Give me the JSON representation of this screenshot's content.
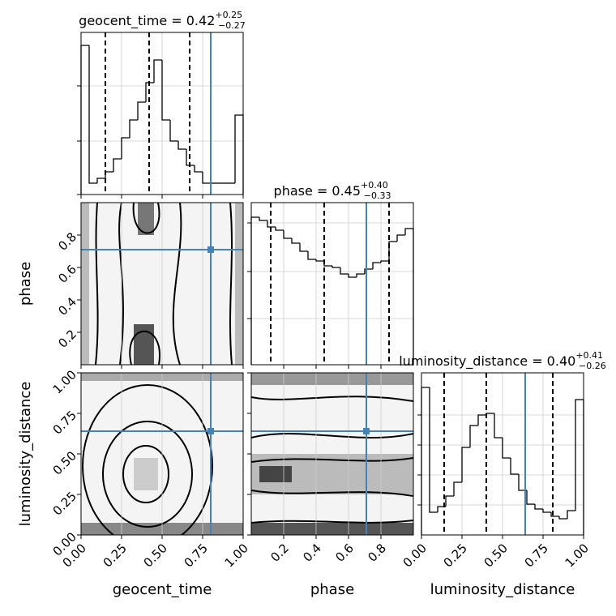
{
  "chart_data": {
    "type": "corner",
    "truth_color": "#4682b4",
    "grid": true,
    "parameters": [
      {
        "name": "geocent_time",
        "title": {
          "main": "geocent_time = 0.42",
          "sup": "+0.25",
          "sub": "−0.27"
        },
        "lim": [
          0,
          1
        ],
        "ticks": [
          {
            "value": 0,
            "label": "0.00"
          },
          {
            "value": 0.25,
            "label": "0.25"
          },
          {
            "value": 0.5,
            "label": "0.50"
          },
          {
            "value": 0.75,
            "label": "0.75"
          },
          {
            "value": 1,
            "label": "1.00"
          }
        ],
        "quantiles": [
          0.15,
          0.42,
          0.67
        ],
        "truth": 0.8,
        "hist": {
          "bins": [
            0,
            0.05,
            0.1,
            0.15,
            0.2,
            0.25,
            0.3,
            0.35,
            0.4,
            0.45,
            0.5,
            0.55,
            0.6,
            0.65,
            0.7,
            0.75,
            0.8,
            0.85,
            0.9,
            0.95,
            1
          ],
          "values": [
            0.92,
            0.07,
            0.1,
            0.14,
            0.22,
            0.35,
            0.46,
            0.57,
            0.69,
            0.83,
            0.46,
            0.33,
            0.28,
            0.18,
            0.14,
            0.07,
            0.07,
            0.07,
            0.07,
            0.49
          ],
          "ylim": [
            0,
            1
          ],
          "yticks": [
            0,
            0.33,
            0.67
          ]
        }
      },
      {
        "name": "phase",
        "title": {
          "main": "phase = 0.45",
          "sup": "+0.40",
          "sub": "−0.33"
        },
        "lim": [
          0,
          1
        ],
        "ticks": [
          0.2,
          0.4,
          0.6,
          0.8
        ],
        "quantiles": [
          0.12,
          0.45,
          0.85
        ],
        "truth": 0.71,
        "hist": {
          "bins": [
            0,
            0.05,
            0.1,
            0.15,
            0.2,
            0.25,
            0.3,
            0.35,
            0.4,
            0.45,
            0.5,
            0.55,
            0.6,
            0.65,
            0.7,
            0.75,
            0.8,
            0.85,
            0.9,
            0.95,
            1
          ],
          "values": [
            0.91,
            0.89,
            0.85,
            0.83,
            0.78,
            0.75,
            0.7,
            0.65,
            0.64,
            0.61,
            0.6,
            0.56,
            0.54,
            0.56,
            0.59,
            0.63,
            0.64,
            0.76,
            0.8,
            0.84
          ],
          "ylim": [
            0,
            1
          ],
          "yticks": [
            0.285,
            0.575,
            0.875
          ]
        }
      },
      {
        "name": "luminosity_distance",
        "title": {
          "main": "luminosity_distance = 0.40",
          "sup": "+0.41",
          "sub": "−0.26"
        },
        "lim": [
          0,
          1
        ],
        "ticks": [
          {
            "value": 0,
            "label": "0.00"
          },
          {
            "value": 0.25,
            "label": "0.25"
          },
          {
            "value": 0.5,
            "label": "0.50"
          },
          {
            "value": 0.75,
            "label": "0.75"
          },
          {
            "value": 1,
            "label": "1.00"
          }
        ],
        "quantiles": [
          0.14,
          0.4,
          0.81
        ],
        "truth": 0.64,
        "hist": {
          "bins": [
            0,
            0.05,
            0.1,
            0.15,
            0.2,
            0.25,
            0.3,
            0.35,
            0.4,
            0.45,
            0.5,
            0.55,
            0.6,
            0.65,
            0.7,
            0.75,
            0.8,
            0.85,
            0.9,
            0.95,
            1
          ],
          "values": [
            0.91,
            0.14,
            0.175,
            0.24,
            0.325,
            0.54,
            0.675,
            0.74,
            0.75,
            0.6,
            0.475,
            0.375,
            0.275,
            0.19,
            0.16,
            0.14,
            0.115,
            0.1,
            0.15,
            0.835
          ],
          "ylim": [
            0,
            1
          ],
          "yticks": [
            0.185,
            0.37,
            0.555,
            0.74
          ]
        }
      }
    ]
  }
}
